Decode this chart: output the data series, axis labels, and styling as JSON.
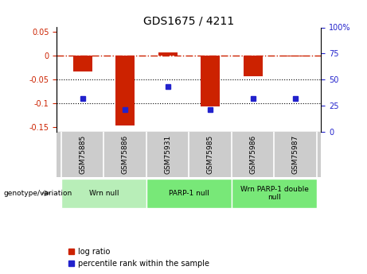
{
  "title": "GDS1675 / 4211",
  "samples": [
    "GSM75885",
    "GSM75886",
    "GSM75931",
    "GSM75985",
    "GSM75986",
    "GSM75987"
  ],
  "log_ratios": [
    -0.033,
    -0.148,
    0.007,
    -0.107,
    -0.043,
    -0.002
  ],
  "percentile_ranks": [
    32,
    21,
    43,
    21,
    32,
    32
  ],
  "group_defs": [
    {
      "label": "Wrn null",
      "indices": [
        0,
        1
      ],
      "color": "#b8eeb8"
    },
    {
      "label": "PARP-1 null",
      "indices": [
        2,
        3
      ],
      "color": "#78e878"
    },
    {
      "label": "Wrn PARP-1 double\nnull",
      "indices": [
        4,
        5
      ],
      "color": "#78e878"
    }
  ],
  "ylim_left": [
    -0.16,
    0.06
  ],
  "ylim_right": [
    0,
    100
  ],
  "yticks_left": [
    0.05,
    0.0,
    -0.05,
    -0.1,
    -0.15
  ],
  "yticks_right": [
    100,
    75,
    50,
    25,
    0
  ],
  "ytick_left_labels": [
    "0.05",
    "0",
    "-0.05",
    "-0.1",
    "-0.15"
  ],
  "ytick_right_labels": [
    "100%",
    "75",
    "50",
    "25",
    "0"
  ],
  "bar_color": "#cc2200",
  "dot_color": "#2222cc",
  "hline_color": "#cc2200",
  "dot_line_color": "#000000",
  "label_bg": "#cccccc",
  "legend_labels": [
    "log ratio",
    "percentile rank within the sample"
  ],
  "geno_label": "genotype/variation"
}
